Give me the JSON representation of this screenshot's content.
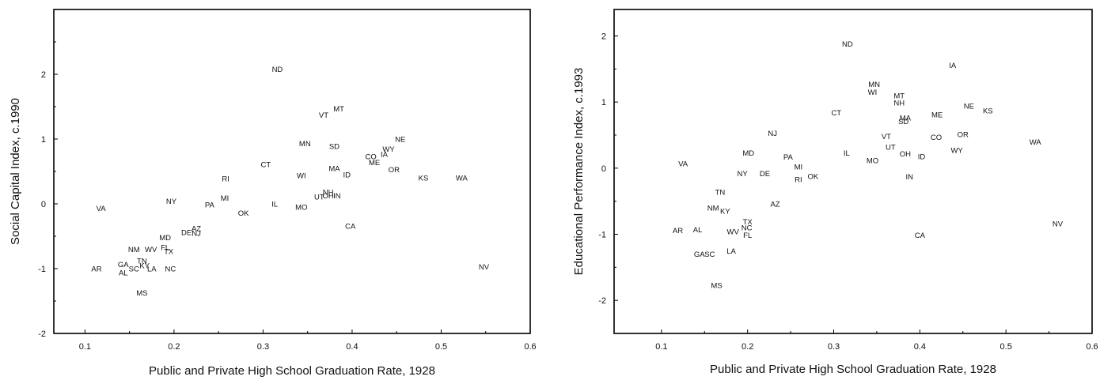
{
  "chart_data": [
    {
      "type": "scatter",
      "xlabel": "Public and Private High School Graduation Rate, 1928",
      "ylabel": "Social Capital Index, c.1990",
      "xlim": [
        0.065,
        0.6
      ],
      "ylim": [
        -2,
        3
      ],
      "xticks": [
        "0.1",
        "0.2",
        "0.3",
        "0.4",
        "0.5",
        "0.6"
      ],
      "yticks": [
        "-2",
        "-1",
        "0",
        "1",
        "2"
      ],
      "grid": false,
      "points": [
        {
          "label": "ND",
          "x": 0.316,
          "y": 2.08
        },
        {
          "label": "MT",
          "x": 0.385,
          "y": 1.47
        },
        {
          "label": "VT",
          "x": 0.368,
          "y": 1.37
        },
        {
          "label": "NE",
          "x": 0.454,
          "y": 1.0
        },
        {
          "label": "MN",
          "x": 0.347,
          "y": 0.93
        },
        {
          "label": "SD",
          "x": 0.38,
          "y": 0.89
        },
        {
          "label": "WY",
          "x": 0.441,
          "y": 0.85
        },
        {
          "label": "IA",
          "x": 0.436,
          "y": 0.77
        },
        {
          "label": "CO",
          "x": 0.421,
          "y": 0.73
        },
        {
          "label": "ME",
          "x": 0.425,
          "y": 0.64
        },
        {
          "label": "CT",
          "x": 0.303,
          "y": 0.61
        },
        {
          "label": "MA",
          "x": 0.38,
          "y": 0.55
        },
        {
          "label": "OR",
          "x": 0.447,
          "y": 0.53
        },
        {
          "label": "ID",
          "x": 0.394,
          "y": 0.45
        },
        {
          "label": "WI",
          "x": 0.343,
          "y": 0.44
        },
        {
          "label": "KS",
          "x": 0.48,
          "y": 0.4
        },
        {
          "label": "WA",
          "x": 0.523,
          "y": 0.4
        },
        {
          "label": "RI",
          "x": 0.258,
          "y": 0.39
        },
        {
          "label": "NH",
          "x": 0.373,
          "y": 0.18
        },
        {
          "label": "IN",
          "x": 0.383,
          "y": 0.13
        },
        {
          "label": "UT",
          "x": 0.363,
          "y": 0.11
        },
        {
          "label": "OH",
          "x": 0.373,
          "y": 0.13
        },
        {
          "label": "MI",
          "x": 0.257,
          "y": 0.09
        },
        {
          "label": "NY",
          "x": 0.197,
          "y": 0.04
        },
        {
          "label": "PA",
          "x": 0.24,
          "y": -0.01
        },
        {
          "label": "IL",
          "x": 0.313,
          "y": 0.0
        },
        {
          "label": "MO",
          "x": 0.343,
          "y": -0.05
        },
        {
          "label": "VA",
          "x": 0.118,
          "y": -0.07
        },
        {
          "label": "OK",
          "x": 0.278,
          "y": -0.14
        },
        {
          "label": "CA",
          "x": 0.398,
          "y": -0.34
        },
        {
          "label": "AZ",
          "x": 0.225,
          "y": -0.38
        },
        {
          "label": "DE",
          "x": 0.214,
          "y": -0.44
        },
        {
          "label": "NJ",
          "x": 0.225,
          "y": -0.45
        },
        {
          "label": "MD",
          "x": 0.19,
          "y": -0.52
        },
        {
          "label": "FL",
          "x": 0.19,
          "y": -0.67
        },
        {
          "label": "NM",
          "x": 0.155,
          "y": -0.7
        },
        {
          "label": "WV",
          "x": 0.174,
          "y": -0.7
        },
        {
          "label": "TX",
          "x": 0.194,
          "y": -0.73
        },
        {
          "label": "TN",
          "x": 0.164,
          "y": -0.88
        },
        {
          "label": "GA",
          "x": 0.143,
          "y": -0.93
        },
        {
          "label": "KY",
          "x": 0.167,
          "y": -0.95
        },
        {
          "label": "SC",
          "x": 0.155,
          "y": -1.0
        },
        {
          "label": "LA",
          "x": 0.175,
          "y": -1.0
        },
        {
          "label": "NC",
          "x": 0.196,
          "y": -1.0
        },
        {
          "label": "AR",
          "x": 0.113,
          "y": -1.0
        },
        {
          "label": "AL",
          "x": 0.143,
          "y": -1.06
        },
        {
          "label": "NV",
          "x": 0.548,
          "y": -0.97
        },
        {
          "label": "MS",
          "x": 0.164,
          "y": -1.37
        }
      ]
    },
    {
      "type": "scatter",
      "xlabel": "Public and Private High School Graduation Rate, 1928",
      "ylabel": "Educational Performance Index, c.1993",
      "xlim": [
        0.045,
        0.6
      ],
      "ylim": [
        -2.5,
        2.4
      ],
      "xticks": [
        "0.1",
        "0.2",
        "0.3",
        "0.4",
        "0.5",
        "0.6"
      ],
      "yticks": [
        "-2",
        "-1",
        "0",
        "1",
        "2"
      ],
      "grid": false,
      "points": [
        {
          "label": "ND",
          "x": 0.316,
          "y": 1.88
        },
        {
          "label": "IA",
          "x": 0.438,
          "y": 1.56
        },
        {
          "label": "MN",
          "x": 0.347,
          "y": 1.27
        },
        {
          "label": "WI",
          "x": 0.345,
          "y": 1.15
        },
        {
          "label": "MT",
          "x": 0.376,
          "y": 1.1
        },
        {
          "label": "NH",
          "x": 0.376,
          "y": 0.99
        },
        {
          "label": "NE",
          "x": 0.457,
          "y": 0.94
        },
        {
          "label": "KS",
          "x": 0.479,
          "y": 0.87
        },
        {
          "label": "CT",
          "x": 0.303,
          "y": 0.84
        },
        {
          "label": "ME",
          "x": 0.42,
          "y": 0.81
        },
        {
          "label": "MA",
          "x": 0.383,
          "y": 0.76
        },
        {
          "label": "SD",
          "x": 0.381,
          "y": 0.71
        },
        {
          "label": "NJ",
          "x": 0.229,
          "y": 0.53
        },
        {
          "label": "OR",
          "x": 0.45,
          "y": 0.51
        },
        {
          "label": "VT",
          "x": 0.361,
          "y": 0.48
        },
        {
          "label": "CO",
          "x": 0.419,
          "y": 0.47
        },
        {
          "label": "WA",
          "x": 0.534,
          "y": 0.4
        },
        {
          "label": "UT",
          "x": 0.366,
          "y": 0.32
        },
        {
          "label": "WY",
          "x": 0.443,
          "y": 0.27
        },
        {
          "label": "OH",
          "x": 0.383,
          "y": 0.22
        },
        {
          "label": "IL",
          "x": 0.315,
          "y": 0.23
        },
        {
          "label": "MD",
          "x": 0.201,
          "y": 0.23
        },
        {
          "label": "ID",
          "x": 0.402,
          "y": 0.18
        },
        {
          "label": "PA",
          "x": 0.247,
          "y": 0.17
        },
        {
          "label": "MO",
          "x": 0.345,
          "y": 0.12
        },
        {
          "label": "VA",
          "x": 0.125,
          "y": 0.07
        },
        {
          "label": "MI",
          "x": 0.259,
          "y": 0.02
        },
        {
          "label": "NY",
          "x": 0.194,
          "y": -0.08
        },
        {
          "label": "DE",
          "x": 0.22,
          "y": -0.08
        },
        {
          "label": "OK",
          "x": 0.276,
          "y": -0.12
        },
        {
          "label": "RI",
          "x": 0.259,
          "y": -0.17
        },
        {
          "label": "IN",
          "x": 0.388,
          "y": -0.13
        },
        {
          "label": "TN",
          "x": 0.168,
          "y": -0.36
        },
        {
          "label": "AZ",
          "x": 0.232,
          "y": -0.54
        },
        {
          "label": "NM",
          "x": 0.16,
          "y": -0.6
        },
        {
          "label": "KY",
          "x": 0.174,
          "y": -0.65
        },
        {
          "label": "TX",
          "x": 0.2,
          "y": -0.81
        },
        {
          "label": "NC",
          "x": 0.199,
          "y": -0.9
        },
        {
          "label": "AR",
          "x": 0.119,
          "y": -0.94
        },
        {
          "label": "AL",
          "x": 0.142,
          "y": -0.93
        },
        {
          "label": "WV",
          "x": 0.183,
          "y": -0.96
        },
        {
          "label": "FL",
          "x": 0.2,
          "y": -1.01
        },
        {
          "label": "CA",
          "x": 0.4,
          "y": -1.01
        },
        {
          "label": "NV",
          "x": 0.56,
          "y": -0.84
        },
        {
          "label": "LA",
          "x": 0.181,
          "y": -1.25
        },
        {
          "label": "GA",
          "x": 0.144,
          "y": -1.3
        },
        {
          "label": "SC",
          "x": 0.156,
          "y": -1.3
        },
        {
          "label": "MS",
          "x": 0.164,
          "y": -1.77
        }
      ]
    }
  ]
}
